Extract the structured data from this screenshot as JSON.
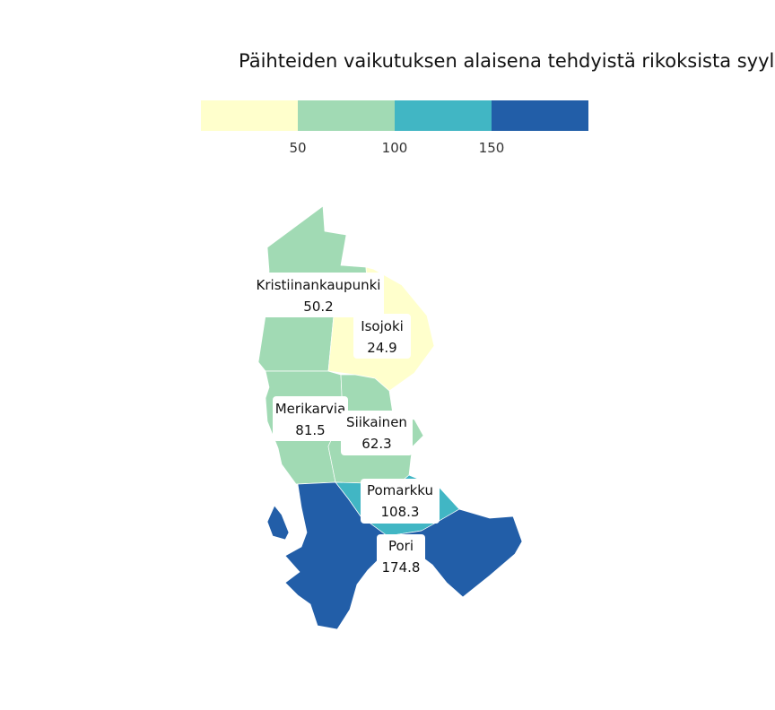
{
  "title": "Päihteiden vaikutuksen alaisena tehdyistä rikoksista syylli",
  "legend": {
    "colors": [
      "#ffffcc",
      "#a1dab4",
      "#41b6c4",
      "#225ea8"
    ],
    "ticks": [
      "50",
      "100",
      "150"
    ]
  },
  "municipalities": [
    {
      "name": "Kristiinankaupunki",
      "value": "50.2",
      "color": "#a1dab4"
    },
    {
      "name": "Isojoki",
      "value": "24.9",
      "color": "#ffffcc"
    },
    {
      "name": "Merikarvia",
      "value": "81.5",
      "color": "#a1dab4"
    },
    {
      "name": "Siikainen",
      "value": "62.3",
      "color": "#a1dab4"
    },
    {
      "name": "Pomarkku",
      "value": "108.3",
      "color": "#41b6c4"
    },
    {
      "name": "Pori",
      "value": "174.8",
      "color": "#225ea8"
    }
  ]
}
